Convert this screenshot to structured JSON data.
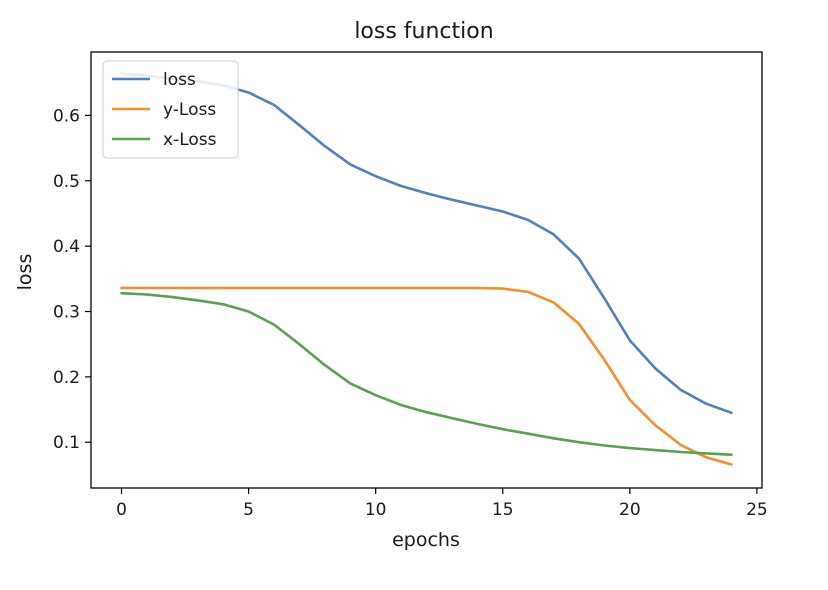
{
  "chart_data": {
    "type": "line",
    "title": "loss function",
    "xlabel": "epochs",
    "ylabel": "loss",
    "xlim": [
      -1.2,
      25.2
    ],
    "ylim": [
      0.03,
      0.697
    ],
    "xticks": [
      0,
      5,
      10,
      15,
      20,
      25
    ],
    "yticks": [
      0.1,
      0.2,
      0.3,
      0.4,
      0.5,
      0.6
    ],
    "ytick_labels": [
      "0.1",
      "0.2",
      "0.3",
      "0.4",
      "0.5",
      "0.6"
    ],
    "xtick_labels": [
      "0",
      "5",
      "10",
      "15",
      "20",
      "25"
    ],
    "grid": false,
    "legend_position": "top-left",
    "x": [
      0,
      1,
      2,
      3,
      4,
      5,
      6,
      7,
      8,
      9,
      10,
      11,
      12,
      13,
      14,
      15,
      16,
      17,
      18,
      19,
      20,
      21,
      22,
      23,
      24
    ],
    "series": [
      {
        "name": "loss",
        "color": "#4f81bd",
        "values": [
          0.664,
          0.661,
          0.656,
          0.652,
          0.646,
          0.635,
          0.616,
          0.585,
          0.553,
          0.525,
          0.507,
          0.492,
          0.481,
          0.471,
          0.462,
          0.453,
          0.44,
          0.418,
          0.381,
          0.32,
          0.256,
          0.213,
          0.18,
          0.159,
          0.145
        ]
      },
      {
        "name": "y-Loss",
        "color": "#f28e2b",
        "values": [
          0.336,
          0.336,
          0.336,
          0.336,
          0.336,
          0.336,
          0.336,
          0.336,
          0.336,
          0.336,
          0.336,
          0.336,
          0.336,
          0.336,
          0.336,
          0.335,
          0.33,
          0.314,
          0.281,
          0.226,
          0.165,
          0.126,
          0.096,
          0.077,
          0.066
        ]
      },
      {
        "name": "x-Loss",
        "color": "#59a14f",
        "values": [
          0.328,
          0.326,
          0.322,
          0.317,
          0.311,
          0.3,
          0.28,
          0.25,
          0.218,
          0.19,
          0.172,
          0.157,
          0.146,
          0.137,
          0.128,
          0.12,
          0.113,
          0.106,
          0.1,
          0.095,
          0.091,
          0.088,
          0.085,
          0.083,
          0.081
        ]
      }
    ]
  }
}
